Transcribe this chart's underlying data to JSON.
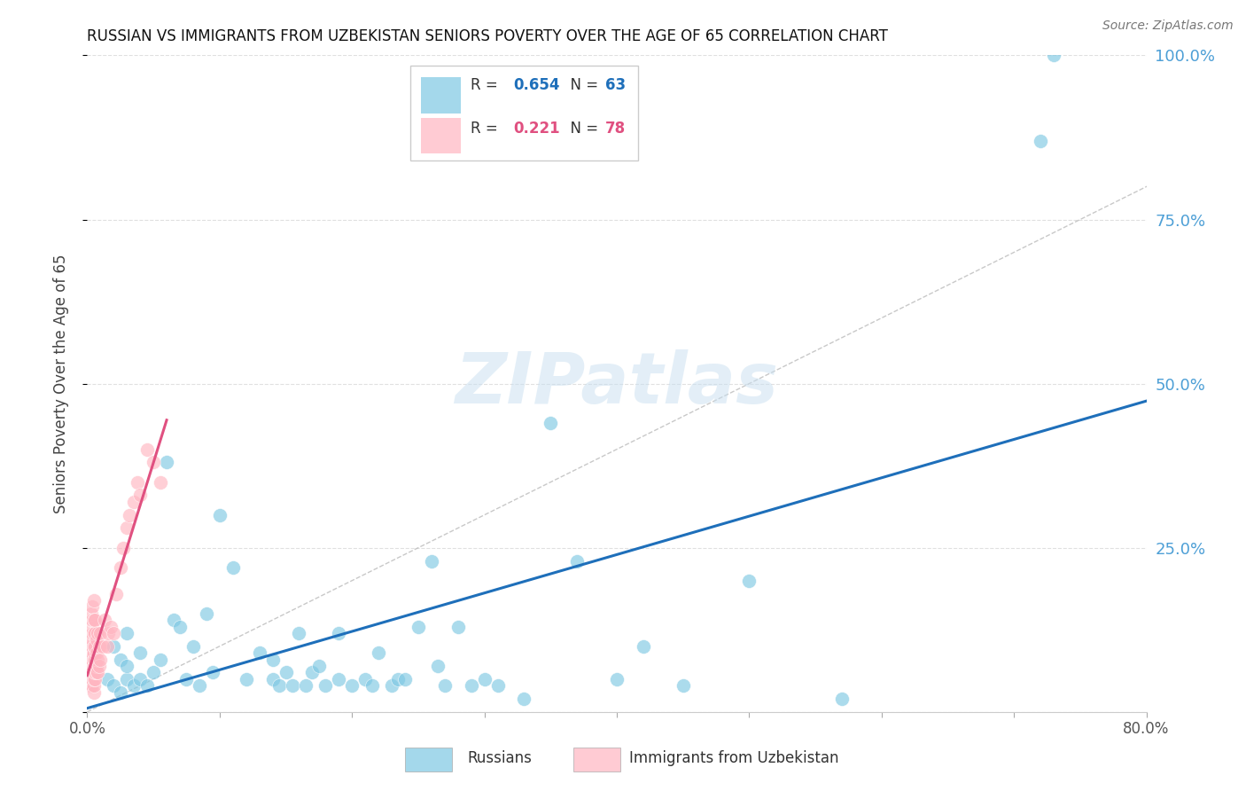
{
  "title": "RUSSIAN VS IMMIGRANTS FROM UZBEKISTAN SENIORS POVERTY OVER THE AGE OF 65 CORRELATION CHART",
  "source": "Source: ZipAtlas.com",
  "ylabel": "Seniors Poverty Over the Age of 65",
  "xlim": [
    0.0,
    0.8
  ],
  "ylim": [
    0.0,
    1.0
  ],
  "color_blue": "#7EC8E3",
  "color_pink": "#FFB6C1",
  "color_line_blue": "#1E6FBA",
  "color_line_pink": "#E05080",
  "color_diag": "#BBBBBB",
  "color_grid": "#E0E0E0",
  "color_axis_right": "#4D9FD6",
  "watermark_text": "ZIPatlas",
  "watermark_color": "#C8DFF0",
  "R1": "0.654",
  "N1": "63",
  "R2": "0.221",
  "N2": "78",
  "russians_x": [
    0.015,
    0.02,
    0.02,
    0.025,
    0.025,
    0.03,
    0.03,
    0.03,
    0.035,
    0.04,
    0.04,
    0.045,
    0.05,
    0.055,
    0.06,
    0.065,
    0.07,
    0.075,
    0.08,
    0.085,
    0.09,
    0.095,
    0.1,
    0.11,
    0.12,
    0.13,
    0.14,
    0.14,
    0.145,
    0.15,
    0.155,
    0.16,
    0.165,
    0.17,
    0.175,
    0.18,
    0.19,
    0.19,
    0.2,
    0.21,
    0.215,
    0.22,
    0.23,
    0.235,
    0.24,
    0.25,
    0.26,
    0.265,
    0.27,
    0.28,
    0.29,
    0.3,
    0.31,
    0.33,
    0.35,
    0.37,
    0.4,
    0.42,
    0.45,
    0.5,
    0.57,
    0.72,
    0.73
  ],
  "russians_y": [
    0.05,
    0.04,
    0.1,
    0.03,
    0.08,
    0.05,
    0.07,
    0.12,
    0.04,
    0.05,
    0.09,
    0.04,
    0.06,
    0.08,
    0.38,
    0.14,
    0.13,
    0.05,
    0.1,
    0.04,
    0.15,
    0.06,
    0.3,
    0.22,
    0.05,
    0.09,
    0.05,
    0.08,
    0.04,
    0.06,
    0.04,
    0.12,
    0.04,
    0.06,
    0.07,
    0.04,
    0.05,
    0.12,
    0.04,
    0.05,
    0.04,
    0.09,
    0.04,
    0.05,
    0.05,
    0.13,
    0.23,
    0.07,
    0.04,
    0.13,
    0.04,
    0.05,
    0.04,
    0.02,
    0.44,
    0.23,
    0.05,
    0.1,
    0.04,
    0.2,
    0.02,
    0.87,
    1.0
  ],
  "uzbeks_x": [
    0.001,
    0.001,
    0.001,
    0.002,
    0.002,
    0.002,
    0.002,
    0.002,
    0.002,
    0.002,
    0.003,
    0.003,
    0.003,
    0.003,
    0.003,
    0.003,
    0.003,
    0.003,
    0.003,
    0.003,
    0.003,
    0.004,
    0.004,
    0.004,
    0.004,
    0.004,
    0.004,
    0.004,
    0.004,
    0.004,
    0.004,
    0.004,
    0.005,
    0.005,
    0.005,
    0.005,
    0.005,
    0.005,
    0.005,
    0.005,
    0.005,
    0.005,
    0.005,
    0.006,
    0.006,
    0.006,
    0.006,
    0.006,
    0.006,
    0.006,
    0.007,
    0.007,
    0.007,
    0.007,
    0.008,
    0.008,
    0.008,
    0.009,
    0.009,
    0.01,
    0.01,
    0.012,
    0.013,
    0.015,
    0.016,
    0.018,
    0.02,
    0.022,
    0.025,
    0.027,
    0.03,
    0.032,
    0.035,
    0.038,
    0.04,
    0.045,
    0.05,
    0.055
  ],
  "uzbeks_y": [
    0.05,
    0.07,
    0.09,
    0.04,
    0.05,
    0.06,
    0.07,
    0.08,
    0.09,
    0.1,
    0.04,
    0.05,
    0.06,
    0.07,
    0.08,
    0.09,
    0.1,
    0.12,
    0.13,
    0.14,
    0.15,
    0.04,
    0.05,
    0.06,
    0.07,
    0.08,
    0.09,
    0.1,
    0.11,
    0.12,
    0.14,
    0.16,
    0.03,
    0.04,
    0.05,
    0.06,
    0.07,
    0.08,
    0.09,
    0.1,
    0.12,
    0.14,
    0.17,
    0.05,
    0.06,
    0.07,
    0.08,
    0.1,
    0.12,
    0.14,
    0.06,
    0.07,
    0.09,
    0.11,
    0.06,
    0.08,
    0.12,
    0.07,
    0.1,
    0.08,
    0.12,
    0.1,
    0.14,
    0.1,
    0.12,
    0.13,
    0.12,
    0.18,
    0.22,
    0.25,
    0.28,
    0.3,
    0.32,
    0.35,
    0.33,
    0.4,
    0.38,
    0.35
  ]
}
